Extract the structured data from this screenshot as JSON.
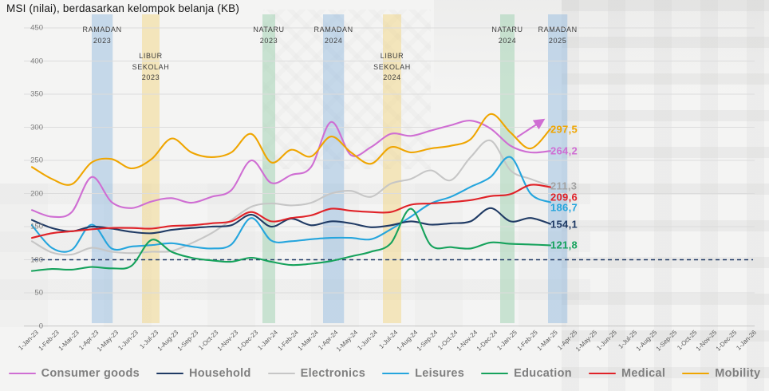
{
  "title": "MSI (nilai), berdasarkan kelompok belanja (KB)",
  "y_axis": {
    "ticks": [
      450,
      400,
      350,
      300,
      250,
      200,
      150,
      100,
      50,
      0
    ]
  },
  "x_axis": {
    "labels": [
      "1-Jan-23",
      "1-Feb-23",
      "1-Mar-23",
      "1-Apr-23",
      "1-May-23",
      "1-Jun-23",
      "1-Jul-23",
      "1-Aug-23",
      "1-Sep-23",
      "1-Oct-23",
      "1-Nov-23",
      "1-Dec-23",
      "1-Jan-24",
      "1-Feb-24",
      "1-Mar-24",
      "1-Apr-24",
      "1-May-24",
      "1-Jun-24",
      "1-Jul-24",
      "1-Aug-24",
      "1-Sep-24",
      "1-Oct-24",
      "1-Nov-24",
      "1-Dec-24",
      "1-Jan-25",
      "1-Feb-25",
      "1-Mar-25",
      "1-Apr-25",
      "1-May-25",
      "1-Jun-25",
      "1-Jul-25",
      "1-Aug-25",
      "1-Sep-25",
      "1-Oct-25",
      "1-Nov-25",
      "1-Dec-25",
      "1-Jan-26"
    ]
  },
  "band_colors": {
    "blue": "rgba(140,182,222,0.45)",
    "yellow": "rgba(242,211,120,0.45)",
    "green": "rgba(152,206,172,0.48)"
  },
  "events": [
    {
      "lines": [
        "RAMADAN",
        "2023"
      ],
      "band": "blue",
      "start_month": 3.0,
      "end_month": 4.05,
      "row": "top"
    },
    {
      "lines": [
        "LIBUR",
        "SEKOLAH",
        "2023"
      ],
      "band": "yellow",
      "start_month": 5.52,
      "end_month": 6.4,
      "row": "mid"
    },
    {
      "lines": [
        "NATARU",
        "2023"
      ],
      "band": "green",
      "start_month": 11.56,
      "end_month": 12.2,
      "row": "top"
    },
    {
      "lines": [
        "RAMADAN",
        "2024"
      ],
      "band": "blue",
      "start_month": 14.6,
      "end_month": 15.65,
      "row": "top"
    },
    {
      "lines": [
        "LIBUR",
        "SEKOLAH",
        "2024"
      ],
      "band": "yellow",
      "start_month": 17.6,
      "end_month": 18.52,
      "row": "mid"
    },
    {
      "lines": [
        "NATARU",
        "2024"
      ],
      "band": "green",
      "start_month": 23.48,
      "end_month": 24.2,
      "row": "top"
    },
    {
      "lines": [
        "RAMADAN",
        "2025"
      ],
      "band": "blue",
      "start_month": 25.88,
      "end_month": 26.85,
      "row": "top"
    }
  ],
  "chart_data": {
    "type": "line",
    "ylim": [
      0,
      450
    ],
    "grid": "horizontal",
    "legend_position": "bottom",
    "baseline": {
      "value": 100,
      "style": "dashed",
      "color": "#1f3864"
    },
    "x_monthly_from": "1-Jan-23",
    "x_monthly_to": "1-Mar-25",
    "series": [
      {
        "name": "Consumer goods",
        "color": "#cf6ed3",
        "end_label": "264,2",
        "values": [
          175,
          165,
          172,
          225,
          187,
          178,
          188,
          193,
          186,
          195,
          205,
          250,
          216,
          228,
          240,
          308,
          258,
          270,
          290,
          287,
          295,
          303,
          310,
          298,
          272,
          262,
          264.2
        ]
      },
      {
        "name": "Household",
        "color": "#1f3a64",
        "end_label": "154,1",
        "values": [
          160,
          148,
          143,
          150,
          147,
          142,
          140,
          145,
          148,
          150,
          152,
          168,
          150,
          162,
          152,
          158,
          155,
          149,
          152,
          158,
          153,
          155,
          158,
          178,
          158,
          163,
          154.1
        ]
      },
      {
        "name": "Electronics",
        "color": "#c6c6c6",
        "label_color": "#a3a3a3",
        "end_label": "211,3",
        "values": [
          128,
          111,
          108,
          118,
          112,
          110,
          112,
          113,
          125,
          140,
          160,
          180,
          185,
          182,
          186,
          200,
          204,
          195,
          215,
          222,
          235,
          220,
          255,
          280,
          235,
          222,
          211.3
        ]
      },
      {
        "name": "Leisures",
        "color": "#25a5dd",
        "end_label": "186,7",
        "values": [
          152,
          118,
          115,
          153,
          117,
          120,
          122,
          125,
          120,
          117,
          123,
          163,
          129,
          128,
          131,
          133,
          133,
          131,
          146,
          165,
          185,
          195,
          210,
          225,
          255,
          200,
          186.7
        ]
      },
      {
        "name": "Education",
        "color": "#16a25c",
        "end_label": "121,8",
        "values": [
          83,
          86,
          85,
          89,
          87,
          91,
          130,
          112,
          103,
          99,
          97,
          103,
          97,
          92,
          94,
          98,
          105,
          112,
          125,
          177,
          122,
          119,
          117,
          126,
          124,
          123,
          121.8
        ]
      },
      {
        "name": "Medical",
        "color": "#e02228",
        "end_label": "209,6",
        "values": [
          133,
          140,
          143,
          146,
          148,
          148,
          147,
          151,
          152,
          155,
          158,
          172,
          158,
          163,
          167,
          177,
          174,
          172,
          172,
          183,
          185,
          187,
          190,
          196,
          199,
          213,
          209.6
        ]
      },
      {
        "name": "Mobility",
        "color": "#efa500",
        "end_label": "297,5",
        "values": [
          240,
          222,
          214,
          247,
          252,
          238,
          252,
          283,
          262,
          255,
          262,
          290,
          247,
          266,
          256,
          286,
          262,
          245,
          270,
          262,
          268,
          272,
          282,
          320,
          292,
          268,
          297.5
        ]
      }
    ],
    "draw_order": [
      "Electronics",
      "Leisures",
      "Household",
      "Education",
      "Medical",
      "Consumer goods",
      "Mobility"
    ]
  },
  "legend": {
    "items": [
      {
        "label": "Consumer goods",
        "color": "#cf6ed3"
      },
      {
        "label": "Household",
        "color": "#1f3a64"
      },
      {
        "label": "Electronics",
        "color": "#c6c6c6"
      },
      {
        "label": "Leisures",
        "color": "#25a5dd"
      },
      {
        "label": "Education",
        "color": "#16a25c"
      },
      {
        "label": "Medical",
        "color": "#e02228"
      },
      {
        "label": "Mobility",
        "color": "#efa500"
      }
    ]
  },
  "annotation": {
    "type": "arrow",
    "color": "#cf6ed3"
  },
  "colors": {
    "grid": "#dcdcdc",
    "axis": "#c6c6c6",
    "tick_label": "#7f7f7f",
    "x_label": "#595959",
    "event_label": "#3d3d3d",
    "legend_text": "#7f7f7f"
  }
}
